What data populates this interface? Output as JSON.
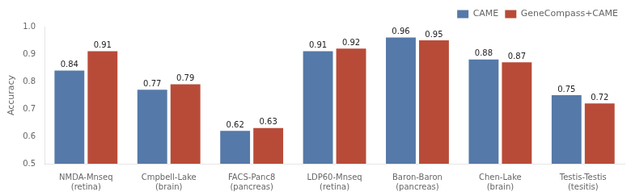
{
  "chart_data": {
    "type": "bar",
    "categories": [
      "NMDA-Mnseq\n(retina)",
      "Cmpbell-Lake\n(brain)",
      "FACS-Panc8\n(pancreas)",
      "LDP60-Mnseq\n(retina)",
      "Baron-Baron\n(pancreas)",
      "Chen-Lake\n(brain)",
      "Testis-Testis\n(tesitis)"
    ],
    "series": [
      {
        "name": "CAME",
        "color": "#5579A8",
        "values": [
          0.84,
          0.77,
          0.62,
          0.91,
          0.96,
          0.88,
          0.75
        ]
      },
      {
        "name": "GeneCompass+CAME",
        "color": "#B84B38",
        "values": [
          0.91,
          0.79,
          0.63,
          0.92,
          0.95,
          0.87,
          0.72
        ]
      }
    ],
    "y_label": "Accuracy",
    "ylim": [
      0.5,
      1.0
    ],
    "yticks": [
      0.5,
      0.6,
      0.7,
      0.8,
      0.9,
      {
        "value": 1.0,
        "label": "1.0"
      }
    ],
    "grid": false,
    "legend": "upper right",
    "data_labels": true
  }
}
